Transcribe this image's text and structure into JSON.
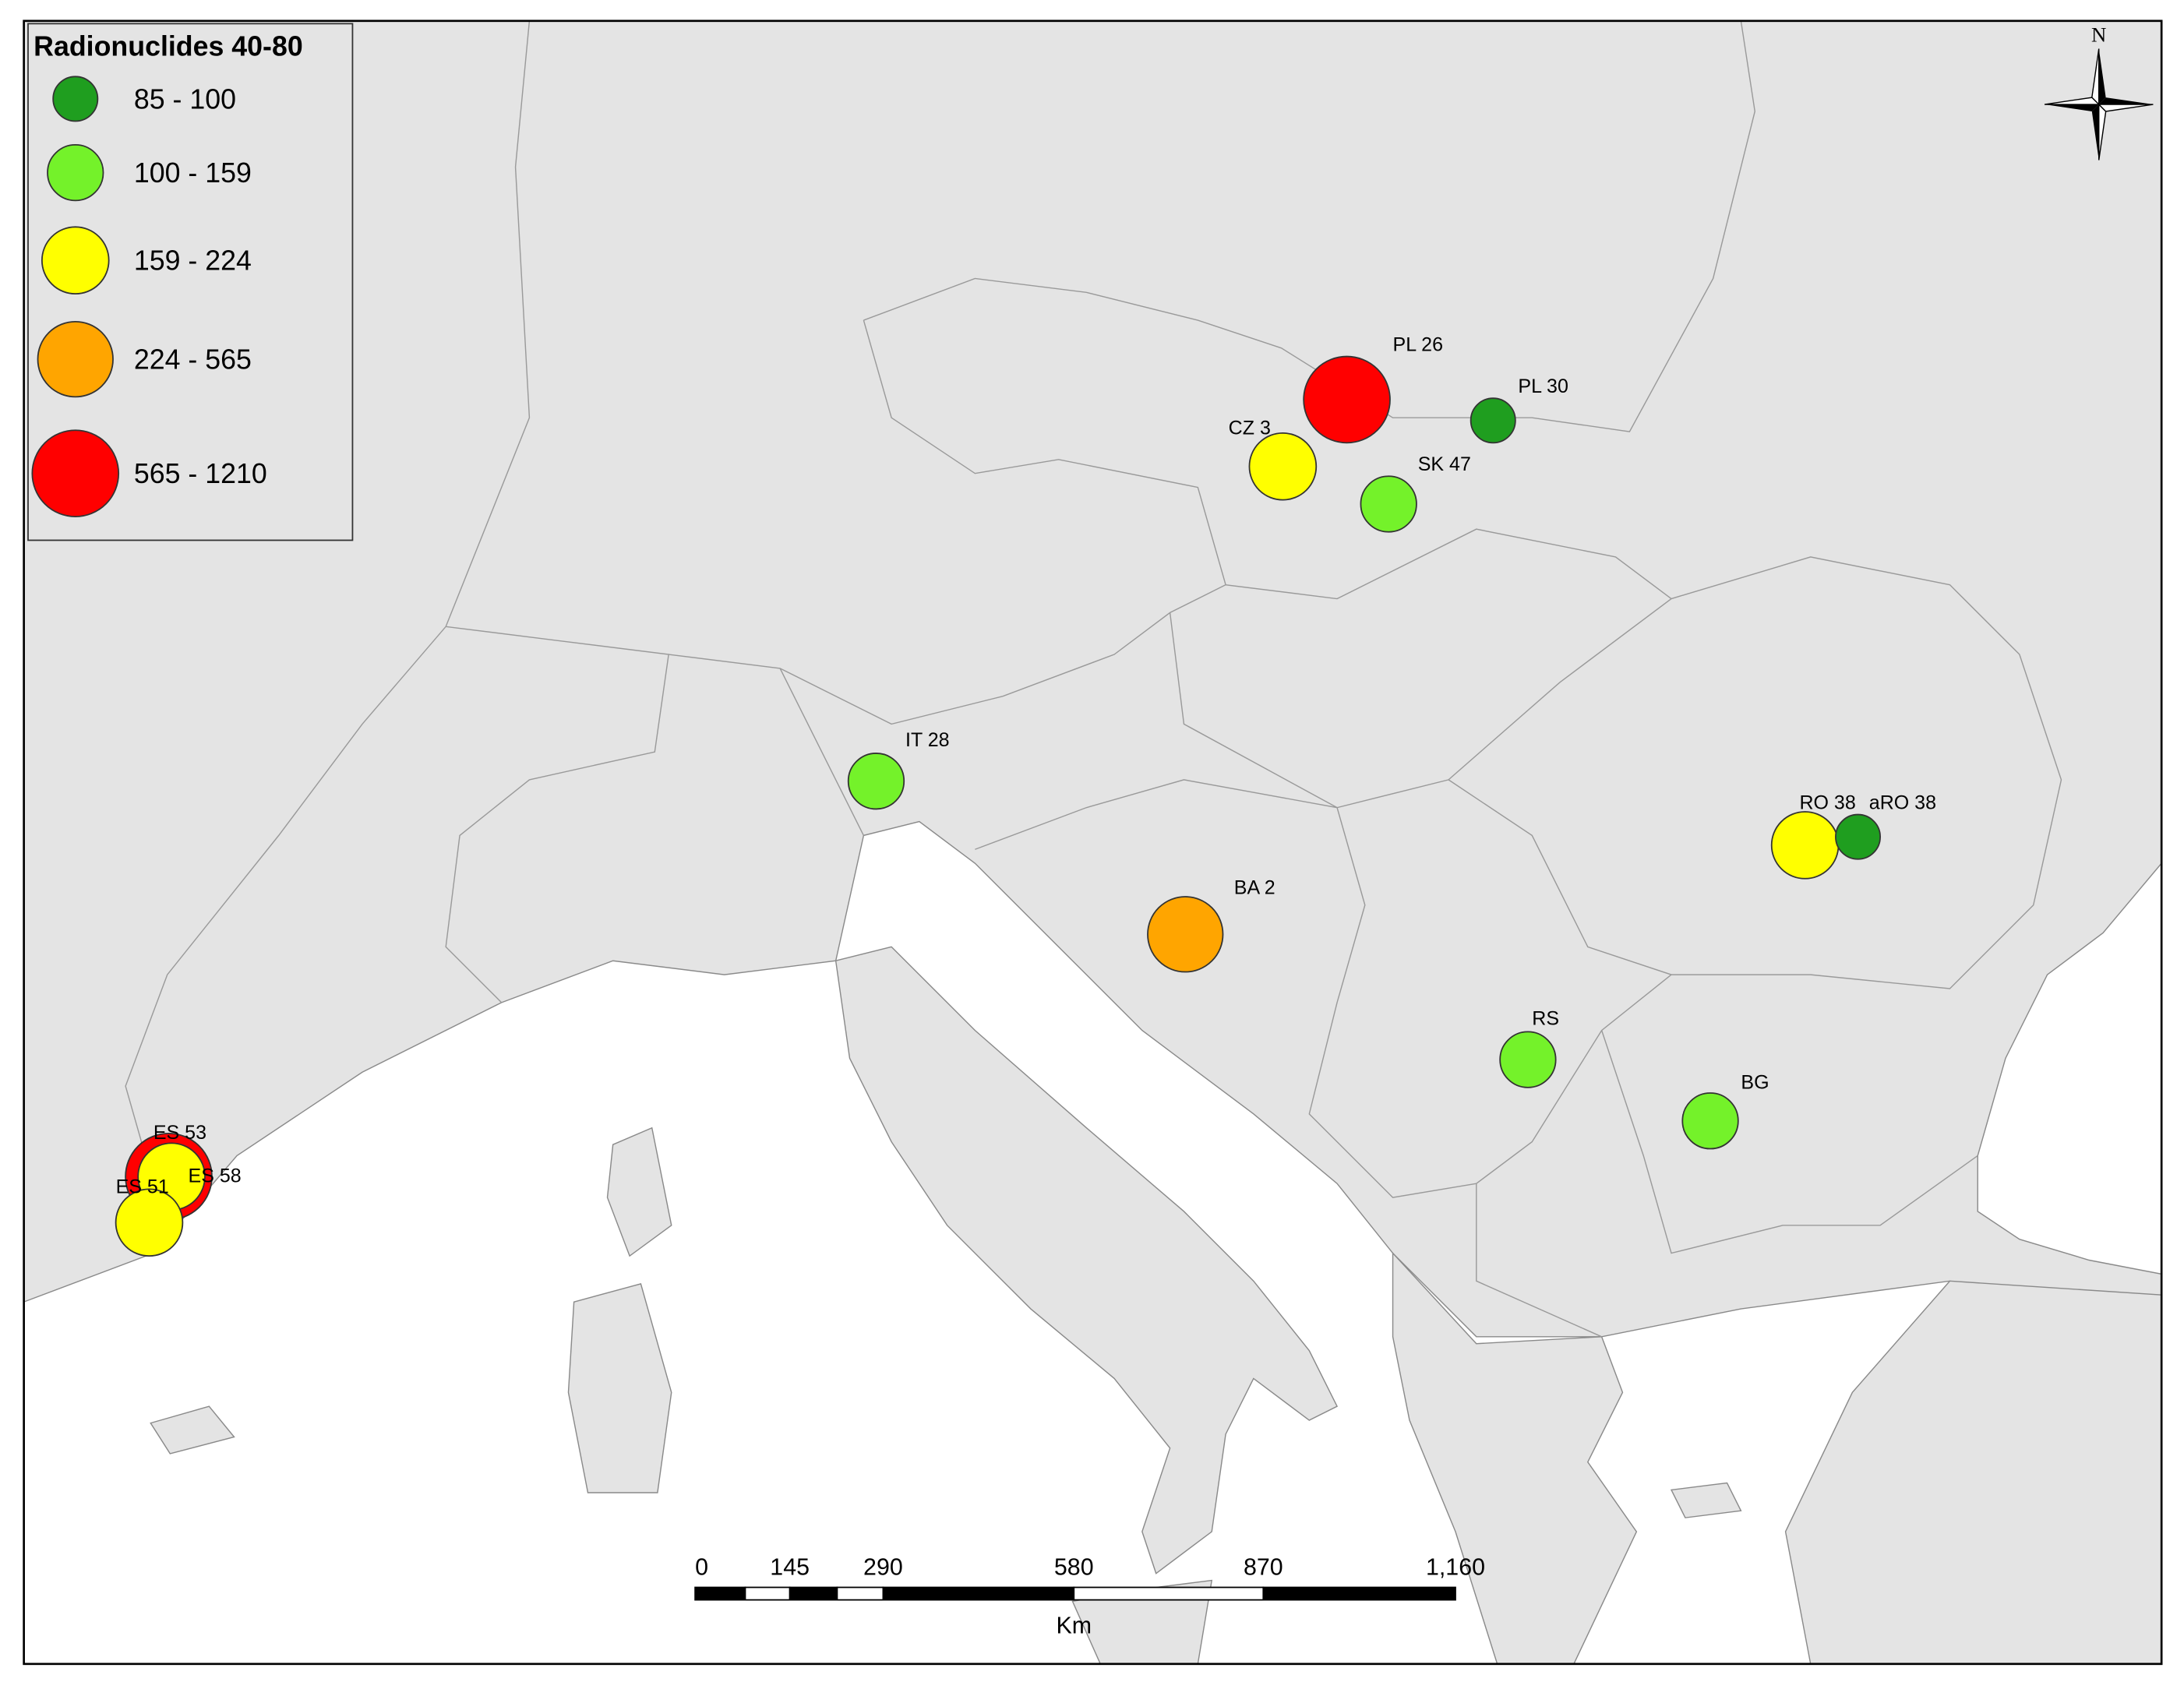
{
  "legend": {
    "title": "Radionuclides 40-80",
    "items": [
      {
        "label": "85 - 100",
        "color": "#1f9e1f"
      },
      {
        "label": "100 - 159",
        "color": "#74f22a"
      },
      {
        "label": "159 - 224",
        "color": "#ffff00"
      },
      {
        "label": "224 - 565",
        "color": "#ffa500"
      },
      {
        "label": "565 - 1210",
        "color": "#ff0000"
      }
    ]
  },
  "sites": [
    {
      "label": "PL 26",
      "color": "#ff0000"
    },
    {
      "label": "PL 30",
      "color": "#1f9e1f"
    },
    {
      "label": "CZ 3",
      "color": "#ffff00"
    },
    {
      "label": "SK 47",
      "color": "#74f22a"
    },
    {
      "label": "IT 28",
      "color": "#74f22a"
    },
    {
      "label": "BA 2",
      "color": "#ffa500"
    },
    {
      "label": "RO 38",
      "color": "#ffff00"
    },
    {
      "label": "aRO 38",
      "color": "#1f9e1f"
    },
    {
      "label": "RS",
      "color": "#74f22a"
    },
    {
      "label": "BG",
      "color": "#74f22a"
    },
    {
      "label": "ES 53",
      "color": "#ff0000"
    },
    {
      "label": "ES 58",
      "color": "#ffff00"
    },
    {
      "label": "ES 51",
      "color": "#ffff00"
    }
  ],
  "scale_bar": {
    "labels": [
      "0",
      "145",
      "290",
      "580",
      "870",
      "1,160"
    ],
    "unit": "Km"
  },
  "compass": "N"
}
